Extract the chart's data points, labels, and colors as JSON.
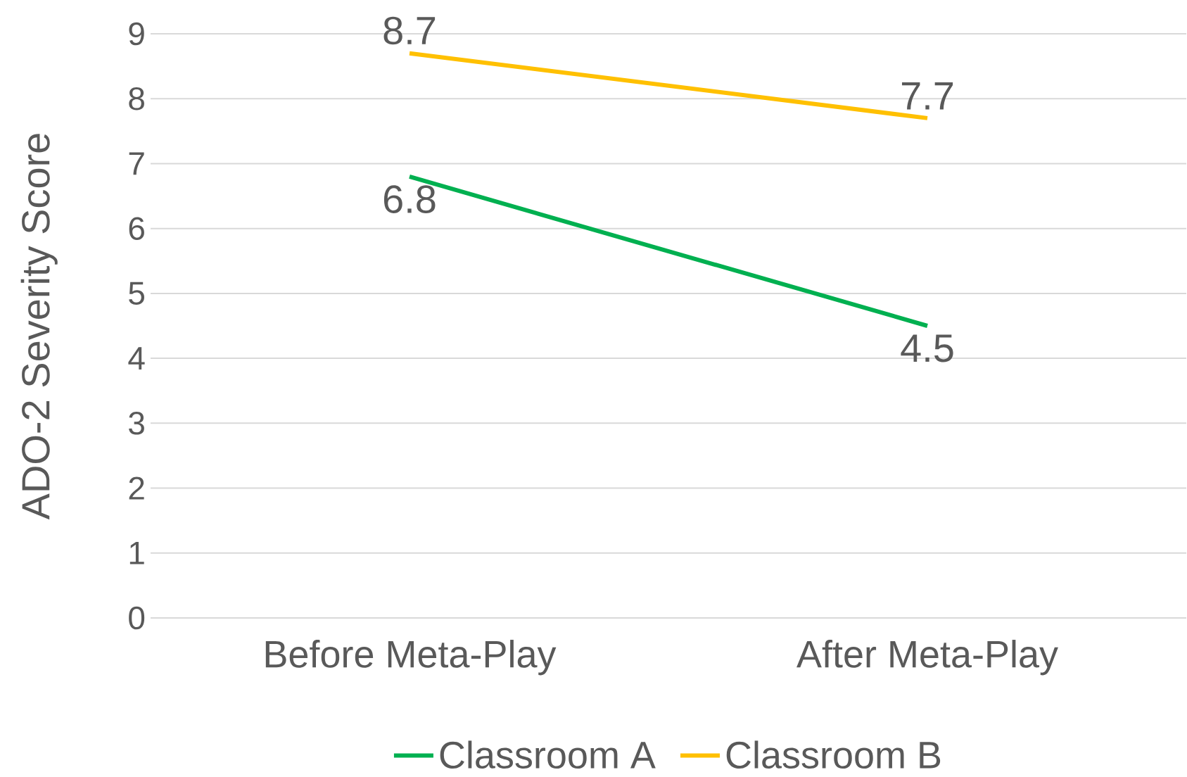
{
  "chart_data": {
    "type": "line",
    "ylabel": "ADO-2 Severity Score",
    "categories": [
      "Before Meta-Play",
      "After Meta-Play"
    ],
    "series": [
      {
        "name": "Classroom A",
        "color": "#00b050",
        "values": [
          6.8,
          4.5
        ]
      },
      {
        "name": "Classroom B",
        "color": "#ffc000",
        "values": [
          8.7,
          7.7
        ]
      }
    ],
    "ylim": [
      0,
      9
    ],
    "yticks": [
      0,
      1,
      2,
      3,
      4,
      5,
      6,
      7,
      8,
      9
    ],
    "grid": "y",
    "legend": "bottom",
    "data_labels": true,
    "marker": "none",
    "line_style": "solid"
  }
}
